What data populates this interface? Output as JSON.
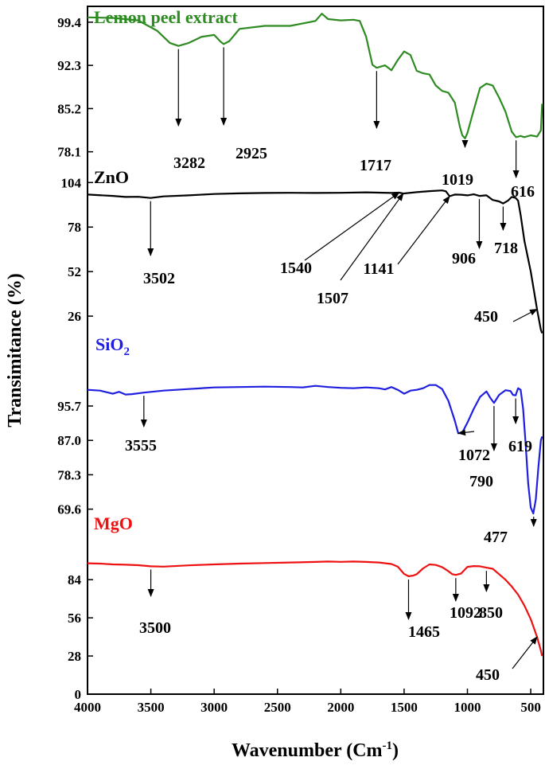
{
  "chart_data": {
    "type": "line",
    "xlabel": "Wavenumber (Cm",
    "xlabel_sup": "-1",
    "xlabel_close": ")",
    "ylabel": "Transimitance (%)",
    "xlim": [
      4000,
      400
    ],
    "x_ticks": [
      "4000",
      "3500",
      "3000",
      "2500",
      "2000",
      "1500",
      "1000",
      "500"
    ],
    "x_tick_values": [
      4000,
      3500,
      3000,
      2500,
      2000,
      1500,
      1000,
      500
    ],
    "panels": [
      {
        "name": "Lemon peel extract",
        "color": "#2e8b22",
        "ylim": [
          74.0,
          102.0
        ],
        "y_ticks": [
          "78.1",
          "85.2",
          "92.3",
          "99.4"
        ],
        "y_tick_values": [
          78.1,
          85.2,
          92.3,
          99.4
        ],
        "x": [
          4000,
          3800,
          3600,
          3450,
          3350,
          3282,
          3200,
          3100,
          3000,
          2950,
          2925,
          2880,
          2800,
          2600,
          2400,
          2300,
          2200,
          2150,
          2100,
          2000,
          1900,
          1850,
          1800,
          1750,
          1717,
          1650,
          1600,
          1550,
          1500,
          1450,
          1400,
          1350,
          1300,
          1250,
          1200,
          1150,
          1100,
          1060,
          1040,
          1019,
          1000,
          950,
          900,
          850,
          800,
          750,
          700,
          650,
          616,
          580,
          550,
          500,
          450,
          420,
          410
        ],
        "y": [
          100.2,
          100.1,
          99.7,
          98.0,
          96.0,
          95.5,
          96.0,
          97.0,
          97.3,
          96.2,
          95.8,
          96.3,
          98.3,
          98.8,
          98.8,
          99.2,
          99.6,
          100.8,
          99.9,
          99.7,
          99.8,
          99.6,
          97.0,
          92.4,
          91.9,
          92.3,
          91.5,
          93.2,
          94.6,
          94.0,
          91.4,
          91.0,
          90.8,
          89.0,
          88.1,
          87.8,
          86.2,
          82.2,
          80.8,
          80.3,
          81.2,
          85.0,
          88.6,
          89.3,
          89.0,
          87.0,
          84.7,
          81.4,
          80.5,
          80.7,
          80.5,
          80.8,
          80.6,
          81.6,
          86.0
        ]
      },
      {
        "name": "ZnO",
        "color": "#000000",
        "ylim": [
          7.0,
          106.0
        ],
        "y_ticks": [
          "26",
          "52",
          "78",
          "104"
        ],
        "y_tick_values": [
          26,
          52,
          78,
          104
        ],
        "x": [
          4000,
          3800,
          3700,
          3600,
          3502,
          3400,
          3200,
          3000,
          2800,
          2600,
          2400,
          2200,
          2000,
          1800,
          1700,
          1600,
          1540,
          1507,
          1400,
          1300,
          1200,
          1170,
          1141,
          1100,
          1050,
          1000,
          950,
          906,
          850,
          800,
          750,
          718,
          680,
          650,
          620,
          600,
          580,
          550,
          500,
          450,
          420,
          410
        ],
        "y": [
          97.0,
          96.2,
          95.6,
          95.7,
          95.0,
          95.9,
          96.5,
          97.3,
          97.7,
          97.9,
          98.0,
          97.9,
          98.0,
          98.3,
          98.1,
          97.9,
          98.1,
          97.6,
          98.4,
          99.0,
          99.4,
          98.9,
          96.0,
          97.0,
          96.9,
          96.5,
          97.1,
          96.2,
          96.5,
          93.8,
          93.0,
          91.8,
          93.4,
          95.6,
          95.1,
          93.4,
          85.0,
          70.0,
          52.0,
          30.0,
          18.0,
          16.0
        ]
      },
      {
        "name": "SiO",
        "name_sub": "2",
        "color": "#1f1fe0",
        "ylim": [
          66.5,
          109.0
        ],
        "y_ticks": [
          "69.6",
          "78.3",
          "87.0",
          "95.7"
        ],
        "y_tick_values": [
          69.6,
          78.3,
          87.0,
          95.7
        ],
        "x": [
          4000,
          3900,
          3800,
          3750,
          3700,
          3650,
          3555,
          3400,
          3200,
          3000,
          2800,
          2600,
          2400,
          2300,
          2200,
          2100,
          2000,
          1900,
          1800,
          1700,
          1650,
          1600,
          1550,
          1500,
          1450,
          1400,
          1350,
          1300,
          1250,
          1200,
          1150,
          1100,
          1072,
          1040,
          1000,
          950,
          900,
          850,
          820,
          790,
          750,
          700,
          660,
          640,
          619,
          600,
          580,
          560,
          540,
          520,
          500,
          480,
          460,
          440,
          420,
          410
        ],
        "y": [
          99.8,
          99.6,
          98.8,
          99.3,
          98.6,
          98.7,
          99.1,
          99.6,
          100.0,
          100.4,
          100.5,
          100.6,
          100.5,
          100.4,
          100.8,
          100.5,
          100.3,
          100.2,
          100.4,
          100.2,
          99.9,
          100.5,
          99.8,
          98.8,
          99.6,
          99.8,
          100.2,
          101.0,
          101.0,
          100.0,
          97.0,
          92.0,
          88.8,
          89.0,
          91.5,
          95.0,
          98.0,
          99.4,
          97.8,
          96.5,
          98.5,
          99.7,
          99.5,
          98.5,
          98.4,
          100.2,
          99.8,
          95.0,
          86.0,
          76.0,
          70.0,
          68.5,
          72.0,
          80.0,
          87.0,
          88.0
        ]
      },
      {
        "name": "MgO",
        "color": "#ee1111",
        "ylim": [
          0,
          125.0
        ],
        "y_ticks": [
          "0",
          "28",
          "56",
          "84"
        ],
        "y_tick_values": [
          0,
          28,
          56,
          84
        ],
        "x": [
          4000,
          3900,
          3800,
          3700,
          3600,
          3500,
          3400,
          3200,
          3000,
          2800,
          2600,
          2400,
          2200,
          2100,
          2000,
          1900,
          1800,
          1700,
          1600,
          1550,
          1500,
          1465,
          1430,
          1400,
          1350,
          1300,
          1250,
          1200,
          1150,
          1120,
          1092,
          1050,
          1000,
          950,
          900,
          850,
          800,
          750,
          700,
          650,
          600,
          550,
          500,
          450,
          420,
          410
        ],
        "y": [
          96.0,
          95.8,
          95.2,
          95.0,
          94.6,
          93.8,
          93.6,
          94.5,
          95.2,
          95.8,
          96.2,
          96.6,
          97.0,
          97.3,
          97.1,
          97.3,
          97.0,
          96.6,
          95.5,
          93.5,
          88.2,
          86.5,
          87.0,
          88.0,
          92.3,
          95.2,
          94.8,
          93.2,
          90.2,
          88.0,
          87.5,
          88.5,
          93.4,
          94.0,
          93.8,
          92.8,
          92.0,
          88.0,
          84.0,
          79.0,
          73.0,
          65.0,
          55.0,
          42.0,
          32.0,
          28.0
        ]
      }
    ],
    "annotations": [
      {
        "panel": 0,
        "label": "3282",
        "x": 3282,
        "y": 95.5
      },
      {
        "panel": 0,
        "label": "2925",
        "x": 2925,
        "y": 95.8
      },
      {
        "panel": 0,
        "label": "1717",
        "x": 1717,
        "y": 91.9
      },
      {
        "panel": 0,
        "label": "1019",
        "x": 1019,
        "y": 80.3
      },
      {
        "panel": 0,
        "label": "616",
        "x": 616,
        "y": 80.5
      },
      {
        "panel": 1,
        "label": "3502",
        "x": 3502,
        "y": 95.0
      },
      {
        "panel": 1,
        "label": "1540",
        "x": 1540,
        "y": 98.1
      },
      {
        "panel": 1,
        "label": "1507",
        "x": 1507,
        "y": 97.6
      },
      {
        "panel": 1,
        "label": "1141",
        "x": 1141,
        "y": 96.0
      },
      {
        "panel": 1,
        "label": "906",
        "x": 906,
        "y": 96.2
      },
      {
        "panel": 1,
        "label": "718",
        "x": 718,
        "y": 91.8
      },
      {
        "panel": 1,
        "label": "450",
        "x": 450,
        "y": 30.0
      },
      {
        "panel": 2,
        "label": "3555",
        "x": 3555,
        "y": 99.1
      },
      {
        "panel": 2,
        "label": "1072",
        "x": 1072,
        "y": 88.8
      },
      {
        "panel": 2,
        "label": "790",
        "x": 790,
        "y": 96.5
      },
      {
        "panel": 2,
        "label": "619",
        "x": 619,
        "y": 98.4
      },
      {
        "panel": 2,
        "label": "477",
        "x": 477,
        "y": 68.5
      },
      {
        "panel": 3,
        "label": "3500",
        "x": 3500,
        "y": 93.8
      },
      {
        "panel": 3,
        "label": "1465",
        "x": 1465,
        "y": 86.5
      },
      {
        "panel": 3,
        "label": "1092",
        "x": 1092,
        "y": 87.5
      },
      {
        "panel": 3,
        "label": "850",
        "x": 850,
        "y": 92.8
      },
      {
        "panel": 3,
        "label": "450",
        "x": 450,
        "y": 42.0
      }
    ]
  }
}
